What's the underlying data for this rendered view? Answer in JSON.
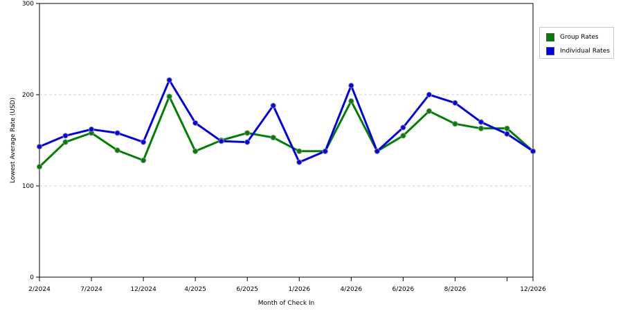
{
  "chart_data": {
    "type": "line",
    "xlabel": "Month of Check In",
    "ylabel": "Lowest Average Rate (USD)",
    "ylim": [
      0,
      300
    ],
    "yticks": [
      0,
      100,
      200,
      300
    ],
    "grid": "horizontal dashed",
    "legend_position": "top-right",
    "x_tick_labels": [
      "2/2024",
      "",
      "7/2024",
      "",
      "12/2024",
      "",
      "4/2025",
      "",
      "6/2025",
      "",
      "1/2026",
      "",
      "4/2026",
      "",
      "6/2026",
      "",
      "8/2026",
      "",
      "",
      "12/2026"
    ],
    "series": [
      {
        "name": "Group Rates",
        "color": "#008000",
        "values": [
          121,
          148,
          158,
          139,
          128,
          198,
          138,
          150,
          158,
          153,
          138,
          138,
          193,
          138,
          155,
          182,
          168,
          163,
          163,
          138
        ]
      },
      {
        "name": "Individual Rates",
        "color": "#0000ee",
        "values": [
          143,
          155,
          162,
          158,
          148,
          216,
          169,
          149,
          148,
          188,
          126,
          138,
          210,
          138,
          164,
          200,
          191,
          170,
          157,
          138
        ]
      }
    ]
  }
}
